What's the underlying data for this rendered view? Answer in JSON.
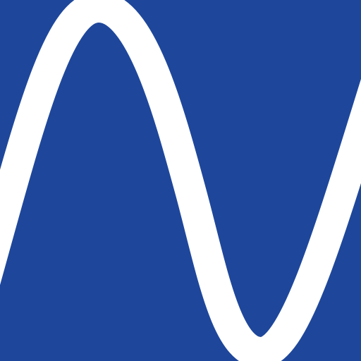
{
  "colors": {
    "background": "#1e479b",
    "wave": "#ffffff"
  },
  "icon": {
    "name": "sine-wave-icon"
  }
}
